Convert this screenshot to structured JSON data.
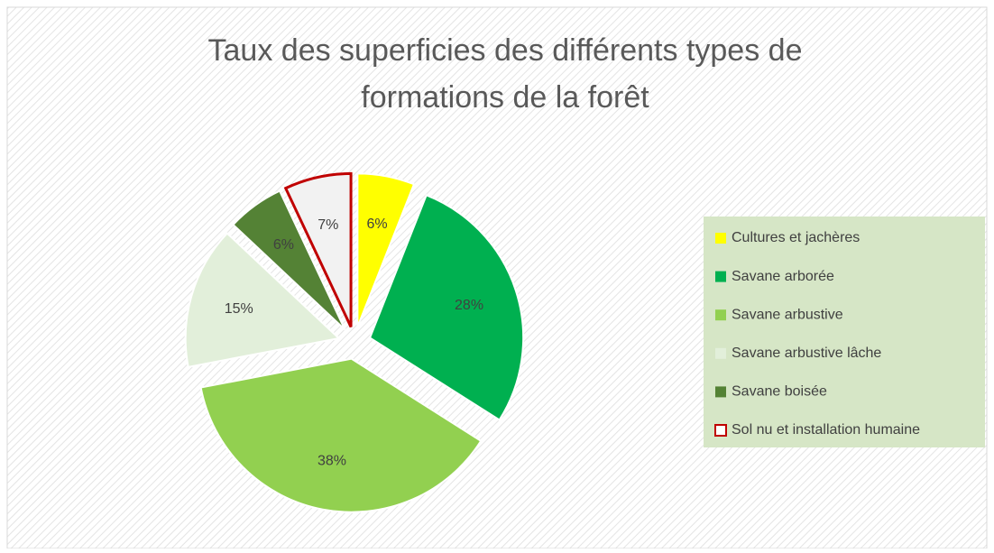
{
  "chart_data": {
    "type": "pie",
    "title": "Taux des superficies des différents types de formations de la forêt",
    "categories": [
      "Cultures et jachères",
      "Savane arborée",
      "Savane arbustive",
      "Savane arbustive lâche",
      "Savane boisée",
      "Sol nu et installation humaine"
    ],
    "values": [
      6,
      28,
      38,
      15,
      6,
      7
    ],
    "value_labels": [
      "6%",
      "28%",
      "38%",
      "15%",
      "6%",
      "7%"
    ],
    "colors": [
      "#ffff00",
      "#00b050",
      "#92d050",
      "#e2efda",
      "#548235",
      "#f2f2f2"
    ],
    "edge_colors": [
      null,
      null,
      null,
      null,
      null,
      "#c00000"
    ],
    "legend": "right"
  }
}
